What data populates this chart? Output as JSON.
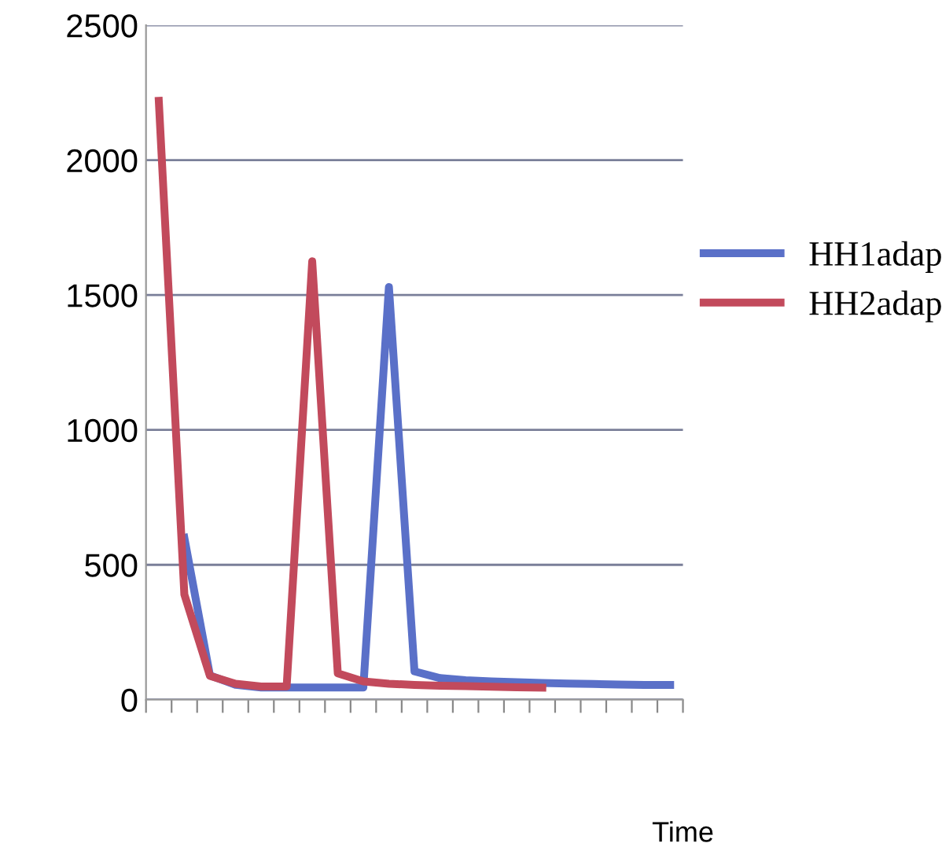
{
  "chart_data": {
    "type": "line",
    "xlabel": "Time",
    "categories": [
      null,
      null,
      null,
      null,
      null,
      null,
      null,
      null,
      null,
      null,
      null,
      null,
      null,
      null,
      null,
      null,
      null,
      null,
      null,
      null,
      null
    ],
    "series": [
      {
        "name": "HH1adap",
        "color": "#5a70c8",
        "values": [
          null,
          600,
          90,
          55,
          45,
          45,
          45,
          45,
          45,
          1530,
          105,
          80,
          72,
          68,
          65,
          62,
          60,
          58,
          56,
          55,
          55
        ]
      },
      {
        "name": "HH2adap",
        "color": "#c24a5c",
        "values": [
          2220,
          390,
          88,
          59,
          49,
          49,
          1625,
          98,
          68,
          59,
          55,
          52,
          50,
          48,
          46,
          45,
          null,
          null,
          null,
          null,
          null
        ]
      }
    ],
    "ylim": [
      0,
      2500
    ],
    "yticks": [
      0,
      500,
      1000,
      1500,
      2000,
      2500
    ],
    "grid": "y",
    "legend": "right",
    "tick_labels": "y",
    "marker": "none",
    "line_style": "solid"
  }
}
